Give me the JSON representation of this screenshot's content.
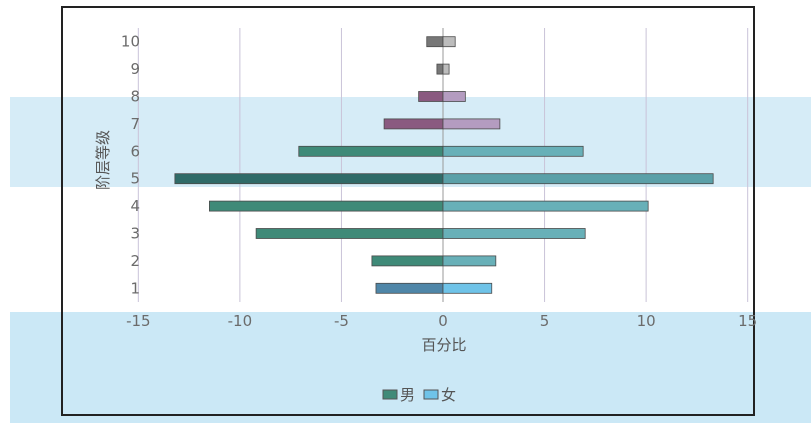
{
  "chart_data": {
    "type": "bar",
    "orientation": "horizontal",
    "layout": "population-pyramid",
    "categories": [
      "1",
      "2",
      "3",
      "4",
      "5",
      "6",
      "7",
      "8",
      "9",
      "10"
    ],
    "series": [
      {
        "name": "男",
        "values": [
          -3.3,
          -3.5,
          -9.2,
          -11.5,
          -13.2,
          -7.1,
          -2.9,
          -1.2,
          -0.3,
          -0.8
        ],
        "colors": [
          "#4f86a8",
          "#3f8a78",
          "#3f8a78",
          "#3f8a78",
          "#2f6b68",
          "#3f8a78",
          "#8a5a80",
          "#8a5a80",
          "#777777",
          "#777777"
        ]
      },
      {
        "name": "女",
        "values": [
          2.4,
          2.6,
          7.0,
          10.1,
          13.3,
          6.9,
          2.8,
          1.1,
          0.3,
          0.6
        ],
        "colors": [
          "#6fc3e8",
          "#68b0b8",
          "#68b0b8",
          "#68b0b8",
          "#5aa0a8",
          "#68b0b8",
          "#b49cc0",
          "#b49cc0",
          "#bcbcbc",
          "#bcbcbc"
        ]
      }
    ],
    "xlabel": "百分比",
    "ylabel": "阶层等级",
    "x_ticks": [
      "-15",
      "-10",
      "-5",
      "0",
      "5",
      "10",
      "15"
    ],
    "xlim": [
      -16,
      16
    ],
    "grid": "vertical",
    "legend_position": "bottom"
  }
}
